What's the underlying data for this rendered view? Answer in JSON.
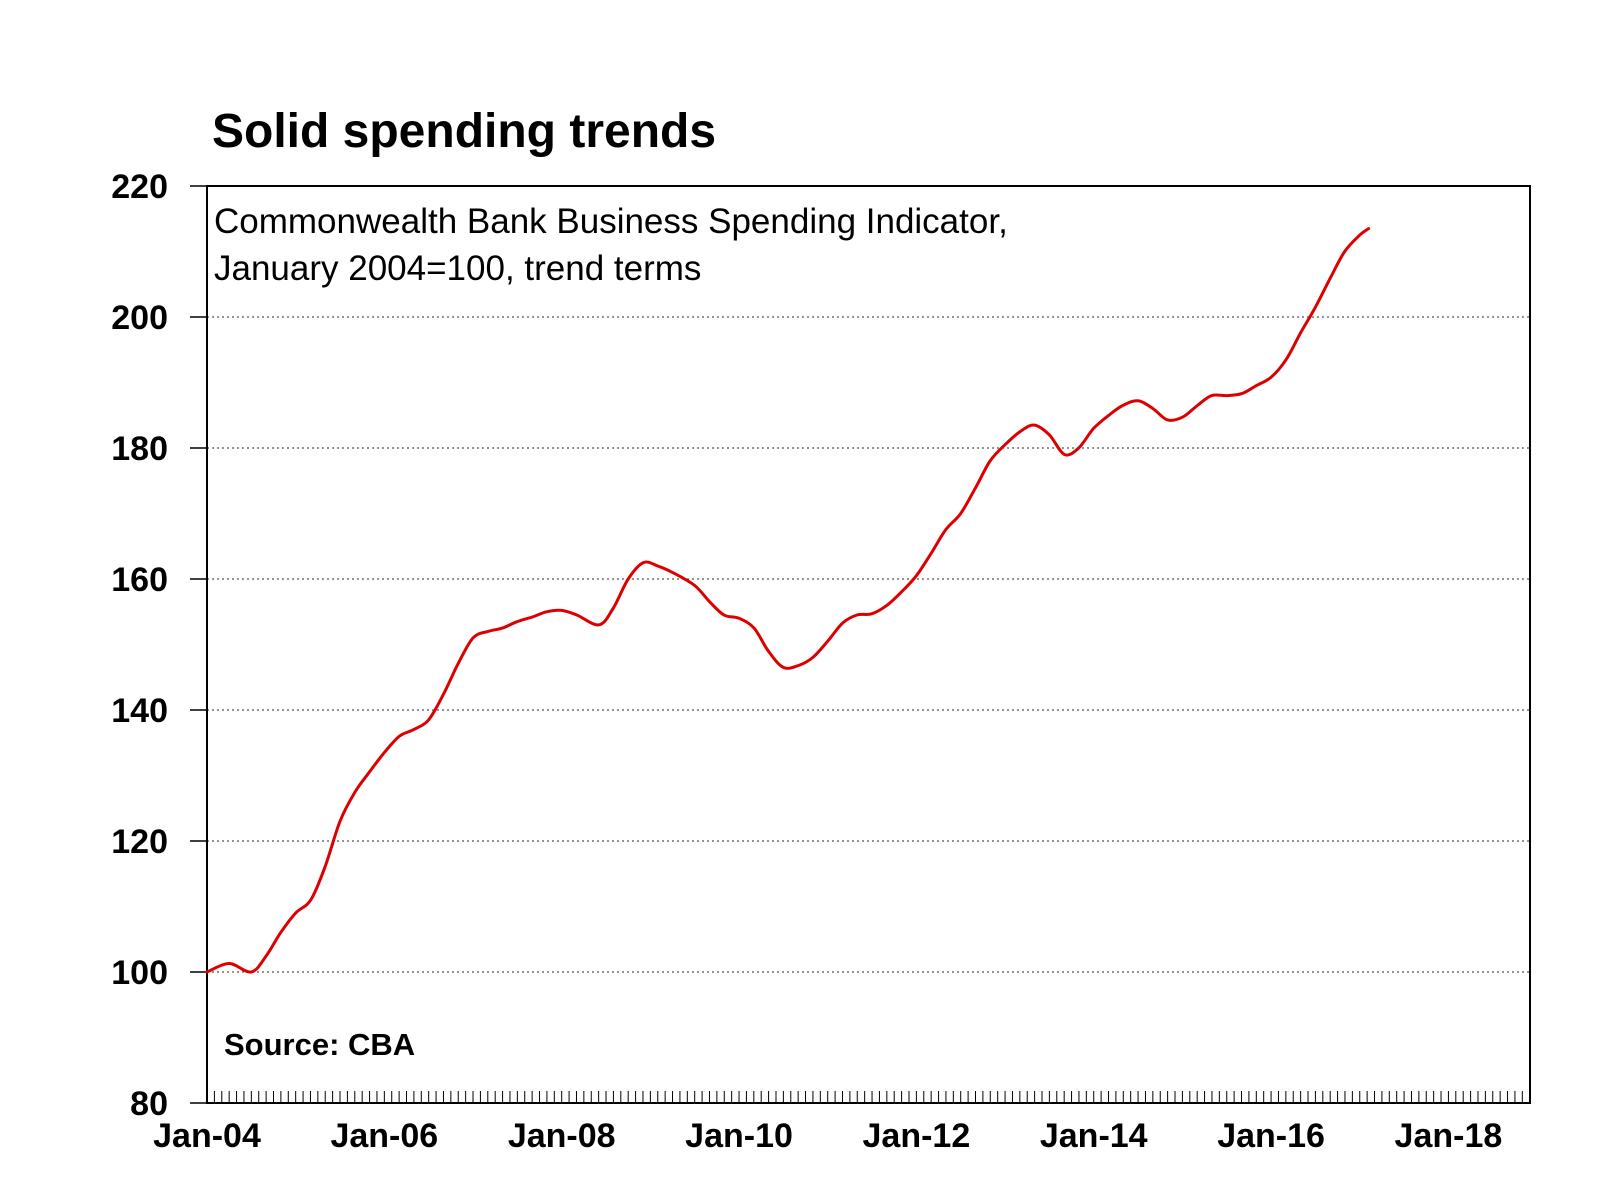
{
  "chart_data": {
    "type": "line",
    "title": "Solid spending trends",
    "subtitle_lines": [
      "Commonwealth Bank Business Spending Indicator,",
      "January 2004=100, trend terms"
    ],
    "source": "Source: CBA",
    "ylim": [
      80,
      220
    ],
    "y_ticks": [
      80,
      100,
      120,
      140,
      160,
      180,
      200,
      220
    ],
    "x_ticks": [
      {
        "label": "Jan-04",
        "x": 2004.0
      },
      {
        "label": "Jan-06",
        "x": 2006.0
      },
      {
        "label": "Jan-08",
        "x": 2008.0
      },
      {
        "label": "Jan-10",
        "x": 2010.0
      },
      {
        "label": "Jan-12",
        "x": 2012.0
      },
      {
        "label": "Jan-14",
        "x": 2014.0
      },
      {
        "label": "Jan-16",
        "x": 2016.0
      },
      {
        "label": "Jan-18",
        "x": 2018.0
      }
    ],
    "xlim": [
      2004.0,
      2018.92
    ],
    "grid": "horizontal dotted",
    "line_color": "#dd0000",
    "series": [
      {
        "points": [
          [
            2004.0,
            100
          ],
          [
            2004.25,
            101.3
          ],
          [
            2004.5,
            100
          ],
          [
            2004.67,
            102.5
          ],
          [
            2004.83,
            106
          ],
          [
            2005.0,
            109
          ],
          [
            2005.17,
            111
          ],
          [
            2005.33,
            116
          ],
          [
            2005.5,
            123
          ],
          [
            2005.67,
            127.5
          ],
          [
            2005.83,
            130.5
          ],
          [
            2006.0,
            133.5
          ],
          [
            2006.17,
            136
          ],
          [
            2006.33,
            137
          ],
          [
            2006.5,
            138.5
          ],
          [
            2006.67,
            142.5
          ],
          [
            2006.83,
            147
          ],
          [
            2007.0,
            151
          ],
          [
            2007.17,
            152
          ],
          [
            2007.33,
            152.5
          ],
          [
            2007.5,
            153.5
          ],
          [
            2007.67,
            154.2
          ],
          [
            2007.83,
            155
          ],
          [
            2008.0,
            155.2
          ],
          [
            2008.17,
            154.5
          ],
          [
            2008.42,
            153
          ],
          [
            2008.58,
            155.5
          ],
          [
            2008.75,
            160
          ],
          [
            2008.92,
            162.5
          ],
          [
            2009.08,
            162
          ],
          [
            2009.25,
            161
          ],
          [
            2009.5,
            159
          ],
          [
            2009.67,
            156.5
          ],
          [
            2009.83,
            154.5
          ],
          [
            2010.0,
            154
          ],
          [
            2010.17,
            152.5
          ],
          [
            2010.33,
            149
          ],
          [
            2010.5,
            146.5
          ],
          [
            2010.67,
            146.8
          ],
          [
            2010.83,
            148
          ],
          [
            2011.0,
            150.5
          ],
          [
            2011.17,
            153.3
          ],
          [
            2011.33,
            154.5
          ],
          [
            2011.5,
            154.7
          ],
          [
            2011.67,
            156
          ],
          [
            2011.83,
            158
          ],
          [
            2012.0,
            160.5
          ],
          [
            2012.17,
            164
          ],
          [
            2012.33,
            167.5
          ],
          [
            2012.5,
            170
          ],
          [
            2012.67,
            174
          ],
          [
            2012.83,
            178
          ],
          [
            2013.0,
            180.5
          ],
          [
            2013.17,
            182.5
          ],
          [
            2013.33,
            183.5
          ],
          [
            2013.5,
            182
          ],
          [
            2013.67,
            179
          ],
          [
            2013.83,
            180
          ],
          [
            2014.0,
            183
          ],
          [
            2014.17,
            185
          ],
          [
            2014.33,
            186.5
          ],
          [
            2014.5,
            187.2
          ],
          [
            2014.67,
            186
          ],
          [
            2014.83,
            184.3
          ],
          [
            2015.0,
            184.7
          ],
          [
            2015.17,
            186.5
          ],
          [
            2015.33,
            188
          ],
          [
            2015.5,
            188
          ],
          [
            2015.67,
            188.3
          ],
          [
            2015.83,
            189.5
          ],
          [
            2016.0,
            190.8
          ],
          [
            2016.17,
            193.5
          ],
          [
            2016.33,
            197.5
          ],
          [
            2016.5,
            201.5
          ],
          [
            2016.67,
            206
          ],
          [
            2016.83,
            210
          ],
          [
            2017.0,
            212.5
          ],
          [
            2017.1,
            213.5
          ]
        ]
      }
    ]
  }
}
